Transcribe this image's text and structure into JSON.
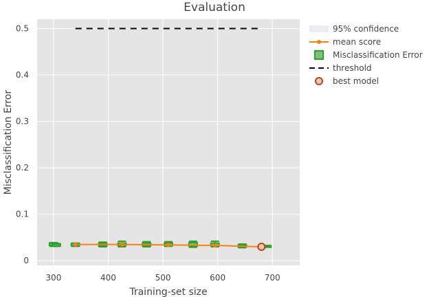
{
  "chart_data": {
    "type": "scatter",
    "title": "Evaluation",
    "xlabel": "Training-set size",
    "ylabel": "Misclassification Error",
    "xlim": [
      270,
      750
    ],
    "ylim": [
      -0.01,
      0.52
    ],
    "xticks": [
      300,
      400,
      500,
      600,
      700
    ],
    "yticks": [
      0,
      0.1,
      0.2,
      0.3,
      0.4,
      0.5
    ],
    "grid": true,
    "plot_background": "#e5e5e5",
    "legend_position": "top-right-outside",
    "legend": [
      {
        "label": "95% confidence",
        "kind": "band",
        "color": "#e8eef2"
      },
      {
        "label": "mean score",
        "kind": "line-marker",
        "color": "#ff7f0e"
      },
      {
        "label": "Misclassification Error",
        "kind": "box",
        "color": "#2ca02c"
      },
      {
        "label": "threshold",
        "kind": "dash",
        "color": "#000000"
      },
      {
        "label": "best model",
        "kind": "circle",
        "color": "#ff7f0e"
      }
    ],
    "threshold": {
      "name": "threshold",
      "y": 0.5,
      "x": [
        340,
        680
      ]
    },
    "mean_score": {
      "name": "mean score",
      "x": [
        340,
        425,
        510,
        595,
        680
      ],
      "y": [
        0.035,
        0.035,
        0.034,
        0.033,
        0.03
      ]
    },
    "boxes": [
      {
        "x": 300,
        "q1": 0.033,
        "q3": 0.038,
        "min": 0.031,
        "max": 0.039
      },
      {
        "x": 305,
        "q1": 0.032,
        "q3": 0.036,
        "min": 0.031,
        "max": 0.037
      },
      {
        "x": 340,
        "q1": 0.032,
        "q3": 0.037,
        "min": 0.031,
        "max": 0.038
      },
      {
        "x": 390,
        "q1": 0.032,
        "q3": 0.038,
        "min": 0.03,
        "max": 0.04
      },
      {
        "x": 425,
        "q1": 0.033,
        "q3": 0.038,
        "min": 0.03,
        "max": 0.042
      },
      {
        "x": 470,
        "q1": 0.032,
        "q3": 0.038,
        "min": 0.03,
        "max": 0.041
      },
      {
        "x": 510,
        "q1": 0.033,
        "q3": 0.038,
        "min": 0.031,
        "max": 0.041
      },
      {
        "x": 555,
        "q1": 0.031,
        "q3": 0.039,
        "min": 0.029,
        "max": 0.042
      },
      {
        "x": 595,
        "q1": 0.032,
        "q3": 0.038,
        "min": 0.03,
        "max": 0.042
      },
      {
        "x": 645,
        "q1": 0.03,
        "q3": 0.034,
        "min": 0.028,
        "max": 0.036
      },
      {
        "x": 690,
        "q1": 0.03,
        "q3": 0.032,
        "min": 0.029,
        "max": 0.033
      }
    ],
    "best_model": {
      "name": "best model",
      "x": 680,
      "y": 0.03
    },
    "colors": {
      "mean": "#ff7f0e",
      "box": "#2ca02c",
      "box_fill": "#7fbf7f",
      "threshold": "#000000",
      "best_fill": "#f7c8a8",
      "best_stroke": "#b5451b",
      "band": "#e8eef2",
      "grid": "#ffffff",
      "text": "#444444"
    }
  }
}
